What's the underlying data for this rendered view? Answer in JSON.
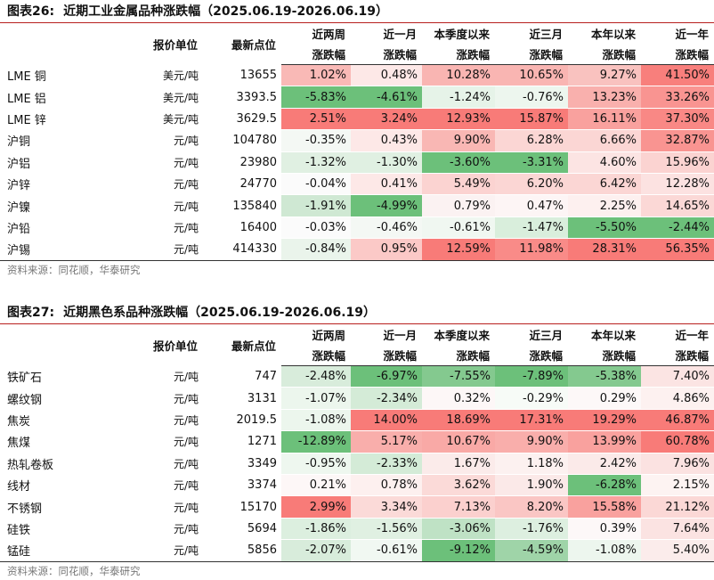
{
  "fig1": {
    "title_num": "图表26:",
    "title_text": "近期工业金属品种涨跌幅（2025.06.19-2026.06.19）",
    "headers": {
      "unit": "报价单位",
      "price": "最新点位",
      "cols": [
        {
          "l1": "近两周",
          "l2": "涨跌幅"
        },
        {
          "l1": "近一月",
          "l2": "涨跌幅"
        },
        {
          "l1": "本季度以来",
          "l2": "涨跌幅"
        },
        {
          "l1": "近三月",
          "l2": "涨跌幅"
        },
        {
          "l1": "本年以来",
          "l2": "涨跌幅"
        },
        {
          "l1": "近一年",
          "l2": "涨跌幅"
        }
      ]
    },
    "rows": [
      {
        "name": "LME 铜",
        "unit": "美元/吨",
        "price": "13655",
        "vals": [
          "1.02%",
          "0.48%",
          "10.28%",
          "10.65%",
          "9.27%",
          "41.50%"
        ],
        "colors": [
          "#f9b9b6",
          "#fde8e7",
          "#f9b5b2",
          "#f9b5b2",
          "#f9c2bf",
          "#f87f7c"
        ]
      },
      {
        "name": "LME 铝",
        "unit": "美元/吨",
        "price": "3393.5",
        "vals": [
          "-5.83%",
          "-4.61%",
          "-1.24%",
          "-0.76%",
          "13.23%",
          "33.26%"
        ],
        "colors": [
          "#6cc07a",
          "#6cc07a",
          "#e6f3e8",
          "#edf6ee",
          "#f9b0ad",
          "#f99491"
        ]
      },
      {
        "name": "LME 锌",
        "unit": "美元/吨",
        "price": "3629.5",
        "vals": [
          "2.51%",
          "3.24%",
          "12.93%",
          "15.87%",
          "16.11%",
          "37.30%"
        ],
        "colors": [
          "#f87b78",
          "#f87b78",
          "#f87b78",
          "#f87b78",
          "#f9a19e",
          "#f98885"
        ]
      },
      {
        "name": "沪铜",
        "unit": "元/吨",
        "price": "104780",
        "vals": [
          "-0.35%",
          "0.43%",
          "9.90%",
          "6.28%",
          "6.66%",
          "32.87%"
        ],
        "colors": [
          "#f4f8f4",
          "#fde8e7",
          "#f9b7b4",
          "#fbd6d4",
          "#fbd6d4",
          "#f99491"
        ]
      },
      {
        "name": "沪铝",
        "unit": "元/吨",
        "price": "23980",
        "vals": [
          "-1.32%",
          "-1.30%",
          "-3.60%",
          "-3.31%",
          "4.60%",
          "15.96%"
        ],
        "colors": [
          "#e0f0e2",
          "#e0f0e2",
          "#6cc07a",
          "#6cc07a",
          "#fce4e3",
          "#fbd3d1"
        ]
      },
      {
        "name": "沪锌",
        "unit": "元/吨",
        "price": "24770",
        "vals": [
          "-0.04%",
          "0.41%",
          "5.49%",
          "6.20%",
          "6.42%",
          "12.28%"
        ],
        "colors": [
          "#fbfbfb",
          "#fde8e7",
          "#fbd3d1",
          "#fbd6d4",
          "#fbd6d4",
          "#fce2e1"
        ]
      },
      {
        "name": "沪镍",
        "unit": "元/吨",
        "price": "135840",
        "vals": [
          "-1.91%",
          "-4.99%",
          "0.79%",
          "0.47%",
          "2.25%",
          "14.65%"
        ],
        "colors": [
          "#cfe8d3",
          "#6cc07a",
          "#fbf2f2",
          "#fdf5f5",
          "#fdf0ef",
          "#fbd8d6"
        ]
      },
      {
        "name": "沪铅",
        "unit": "元/吨",
        "price": "16400",
        "vals": [
          "-0.03%",
          "-0.46%",
          "-0.61%",
          "-1.47%",
          "-5.50%",
          "-2.44%"
        ],
        "colors": [
          "#fbfbfb",
          "#f4f8f4",
          "#f0f7f1",
          "#d9eedc",
          "#6cc07a",
          "#6cc07a"
        ]
      },
      {
        "name": "沪锡",
        "unit": "元/吨",
        "price": "414330",
        "vals": [
          "-0.84%",
          "0.95%",
          "12.59%",
          "11.98%",
          "28.31%",
          "56.35%"
        ],
        "colors": [
          "#eaf4eb",
          "#fbc9c7",
          "#f87b78",
          "#f98b88",
          "#f87b78",
          "#f87b78"
        ]
      }
    ],
    "source": "资料来源：同花顺，华泰研究"
  },
  "fig2": {
    "title_num": "图表27:",
    "title_text": "近期黑色系品种涨跌幅（2025.06.19-2026.06.19）",
    "headers": {
      "unit": "报价单位",
      "price": "最新点位",
      "cols": [
        {
          "l1": "近两周",
          "l2": "涨跌幅"
        },
        {
          "l1": "近一月",
          "l2": "涨跌幅"
        },
        {
          "l1": "本季度以来",
          "l2": "涨跌幅"
        },
        {
          "l1": "近三月",
          "l2": "涨跌幅"
        },
        {
          "l1": "本年以来",
          "l2": "涨跌幅"
        },
        {
          "l1": "近一年",
          "l2": "涨跌幅"
        }
      ]
    },
    "rows": [
      {
        "name": "铁矿石",
        "unit": "元/吨",
        "price": "747",
        "vals": [
          "-2.48%",
          "-6.97%",
          "-7.55%",
          "-7.89%",
          "-5.38%",
          "7.40%"
        ],
        "colors": [
          "#d8ecdb",
          "#6cc07a",
          "#84c98f",
          "#6cc07a",
          "#84c98f",
          "#fbe4e3"
        ]
      },
      {
        "name": "螺纹钢",
        "unit": "元/吨",
        "price": "3131",
        "vals": [
          "-1.07%",
          "-2.34%",
          "0.32%",
          "-0.29%",
          "0.29%",
          "4.86%"
        ],
        "colors": [
          "#ecf6ed",
          "#d4ebd7",
          "#fdf7f7",
          "#f7fbf7",
          "#fdf8f8",
          "#fdf1f0"
        ]
      },
      {
        "name": "焦炭",
        "unit": "元/吨",
        "price": "2019.5",
        "vals": [
          "-1.08%",
          "14.00%",
          "18.69%",
          "17.31%",
          "19.29%",
          "46.87%"
        ],
        "colors": [
          "#ecf6ed",
          "#f87b78",
          "#f87b78",
          "#f87b78",
          "#f87b78",
          "#f87b78"
        ]
      },
      {
        "name": "焦煤",
        "unit": "元/吨",
        "price": "1271",
        "vals": [
          "-12.89%",
          "5.17%",
          "10.67%",
          "9.90%",
          "13.99%",
          "60.78%"
        ],
        "colors": [
          "#6cc07a",
          "#f9aeab",
          "#f9a9a6",
          "#f9aeab",
          "#f9a19e",
          "#f87b78"
        ]
      },
      {
        "name": "热轧卷板",
        "unit": "元/吨",
        "price": "3349",
        "vals": [
          "-0.95%",
          "-2.33%",
          "1.67%",
          "1.18%",
          "2.42%",
          "7.96%"
        ],
        "colors": [
          "#eef7ef",
          "#d4ebd7",
          "#fbebea",
          "#fcf1f0",
          "#fbeae9",
          "#fbe2e1"
        ]
      },
      {
        "name": "线材",
        "unit": "元/吨",
        "price": "3374",
        "vals": [
          "0.21%",
          "0.78%",
          "3.62%",
          "1.90%",
          "-6.28%",
          "2.15%"
        ],
        "colors": [
          "#fdf7f7",
          "#fdf0ef",
          "#fbdad8",
          "#fbe9e8",
          "#6cc07a",
          "#fdf3f2"
        ]
      },
      {
        "name": "不锈钢",
        "unit": "元/吨",
        "price": "15170",
        "vals": [
          "2.99%",
          "3.34%",
          "7.13%",
          "8.20%",
          "15.58%",
          "21.12%"
        ],
        "colors": [
          "#f87b78",
          "#fbdad8",
          "#fbd0ce",
          "#fac6c4",
          "#f9a19e",
          "#fbd8d6"
        ]
      },
      {
        "name": "硅铁",
        "unit": "元/吨",
        "price": "5694",
        "vals": [
          "-1.86%",
          "-1.56%",
          "-3.06%",
          "-1.76%",
          "0.39%",
          "7.64%"
        ],
        "colors": [
          "#dcefdf",
          "#e0f0e2",
          "#bfe2c5",
          "#ddefe0",
          "#fdf8f8",
          "#fbe3e2"
        ]
      },
      {
        "name": "锰硅",
        "unit": "元/吨",
        "price": "5856",
        "vals": [
          "-2.07%",
          "-0.61%",
          "-9.12%",
          "-4.59%",
          "-1.08%",
          "5.40%"
        ],
        "colors": [
          "#d8ecdb",
          "#f1f8f2",
          "#6cc07a",
          "#9fd4a8",
          "#edf6ee",
          "#fbeceb"
        ]
      }
    ],
    "source": "资料来源：同花顺，华泰研究"
  }
}
